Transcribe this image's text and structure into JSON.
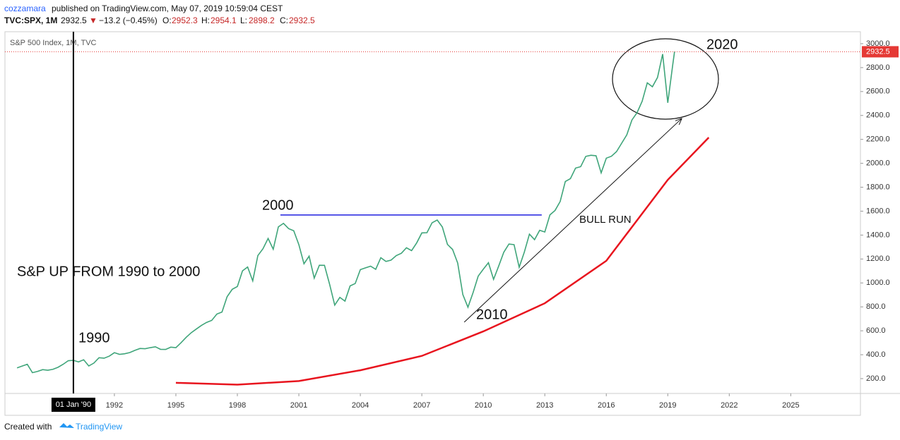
{
  "header": {
    "author": "cozzamara",
    "published": "published on TradingView.com, May 07, 2019 10:59:04 CEST",
    "symbol": "TVC:SPX, 1M",
    "last": "2932.5",
    "arrow": "▼",
    "change": "−13.2 (−0.45%)",
    "o_label": "O:",
    "o": "2952.3",
    "h_label": "H:",
    "h": "2954.1",
    "l_label": "L:",
    "l": "2898.2",
    "c_label": "C:",
    "c": "2932.5"
  },
  "footer": {
    "created": "Created with",
    "brand": "TradingView"
  },
  "chart_data": {
    "type": "line",
    "legend": "S&P 500 Index, 1M, TVC",
    "xlim": [
      1986.66,
      2028.4
    ],
    "ylim": [
      76,
      3100
    ],
    "xticks": [
      1992,
      1995,
      1998,
      2001,
      2004,
      2007,
      2010,
      2013,
      2016,
      2019,
      2022,
      2025
    ],
    "yticks": [
      {
        "value": 200,
        "label": "200.0"
      },
      {
        "value": 400,
        "label": "400.0"
      },
      {
        "value": 600,
        "label": "600.0"
      },
      {
        "value": 800,
        "label": "800.0"
      },
      {
        "value": 1000,
        "label": "1000.0"
      },
      {
        "value": 1200,
        "label": "1200.0"
      },
      {
        "value": 1400,
        "label": "1400.0"
      },
      {
        "value": 1600,
        "label": "1600.0"
      },
      {
        "value": 1800,
        "label": "1800.0"
      },
      {
        "value": 2000,
        "label": "2000.0"
      },
      {
        "value": 2200,
        "label": "2200.0"
      },
      {
        "value": 2400,
        "label": "2400.0"
      },
      {
        "value": 2600,
        "label": "2600.0"
      },
      {
        "value": 2800,
        "label": "2800.0"
      },
      {
        "value": 3000,
        "label": "3000.0"
      }
    ],
    "crosshair": {
      "x": 1990.0,
      "label": "01 Jan '90"
    },
    "price_line": {
      "value": 2932.5,
      "label": "2932.5",
      "color": "#e53935"
    },
    "series": [
      {
        "name": "S&P 500 Index",
        "color": "#3fa57a",
        "x": [
          1987.25,
          1987.5,
          1987.75,
          1988,
          1988.25,
          1988.5,
          1988.75,
          1989,
          1989.25,
          1989.5,
          1989.75,
          1990,
          1990.25,
          1990.5,
          1990.75,
          1991,
          1991.25,
          1991.5,
          1991.75,
          1992,
          1992.25,
          1992.5,
          1992.75,
          1993,
          1993.25,
          1993.5,
          1993.75,
          1994,
          1994.25,
          1994.5,
          1994.75,
          1995,
          1995.25,
          1995.5,
          1995.75,
          1996,
          1996.25,
          1996.5,
          1996.75,
          1997,
          1997.25,
          1997.5,
          1997.75,
          1998,
          1998.25,
          1998.5,
          1998.75,
          1999,
          1999.25,
          1999.5,
          1999.75,
          2000,
          2000.25,
          2000.5,
          2000.75,
          2001,
          2001.25,
          2001.5,
          2001.75,
          2002,
          2002.25,
          2002.5,
          2002.75,
          2003,
          2003.25,
          2003.5,
          2003.75,
          2004,
          2004.25,
          2004.5,
          2004.75,
          2005,
          2005.25,
          2005.5,
          2005.75,
          2006,
          2006.25,
          2006.5,
          2006.75,
          2007,
          2007.25,
          2007.5,
          2007.75,
          2008,
          2008.25,
          2008.5,
          2008.75,
          2009,
          2009.25,
          2009.5,
          2009.75,
          2010,
          2010.25,
          2010.5,
          2010.75,
          2011,
          2011.25,
          2011.5,
          2011.75,
          2012,
          2012.25,
          2012.5,
          2012.75,
          2013,
          2013.25,
          2013.5,
          2013.75,
          2014,
          2014.25,
          2014.5,
          2014.75,
          2015,
          2015.25,
          2015.5,
          2015.75,
          2016,
          2016.25,
          2016.5,
          2016.75,
          2017,
          2017.25,
          2017.5,
          2017.75,
          2018,
          2018.25,
          2018.5,
          2018.75,
          2019,
          2019.25,
          2019.33
        ],
        "values": [
          290,
          305,
          320,
          250,
          260,
          275,
          270,
          278,
          295,
          320,
          350,
          353,
          340,
          358,
          306,
          330,
          375,
          371,
          388,
          417,
          403,
          408,
          418,
          436,
          452,
          450,
          459,
          466,
          445,
          444,
          463,
          459,
          500,
          545,
          584,
          615,
          645,
          670,
          687,
          740,
          757,
          885,
          947,
          970,
          1101,
          1133,
          1017,
          1229,
          1286,
          1372,
          1282,
          1469,
          1498,
          1454,
          1436,
          1320,
          1160,
          1224,
          1040,
          1148,
          1147,
          989,
          815,
          879,
          848,
          975,
          995,
          1111,
          1126,
          1140,
          1114,
          1211,
          1180,
          1191,
          1228,
          1248,
          1294,
          1270,
          1335,
          1418,
          1420,
          1503,
          1526,
          1468,
          1322,
          1280,
          1166,
          903,
          797,
          919,
          1057,
          1115,
          1169,
          1030,
          1141,
          1257,
          1325,
          1320,
          1131,
          1257,
          1408,
          1362,
          1440,
          1426,
          1569,
          1606,
          1681,
          1848,
          1872,
          1960,
          1972,
          2058,
          2067,
          2063,
          1920,
          2043,
          2059,
          2098,
          2168,
          2238,
          2362,
          2423,
          2519,
          2673,
          2640,
          2718,
          2913,
          2506,
          2834,
          2932.5
        ]
      },
      {
        "color": "#e8141e",
        "x": [
          1995,
          1998,
          2001,
          2004,
          2007,
          2010,
          2013,
          2016,
          2019,
          2021
        ],
        "values": [
          165,
          150,
          180,
          270,
          390,
          595,
          830,
          1185,
          1862,
          2216
        ]
      }
    ],
    "resistance": {
      "x": [
        2000.1,
        2012.85
      ],
      "value": 1568,
      "color": "#1f1fe0"
    },
    "arrow_line": {
      "x": [
        2009.07,
        2019.69
      ],
      "values": [
        672,
        2376
      ]
    },
    "annotations": [
      "2020",
      "2000",
      "2010",
      "1990",
      "BULL RUN",
      "S&P UP FROM 1990 to 2000"
    ]
  }
}
